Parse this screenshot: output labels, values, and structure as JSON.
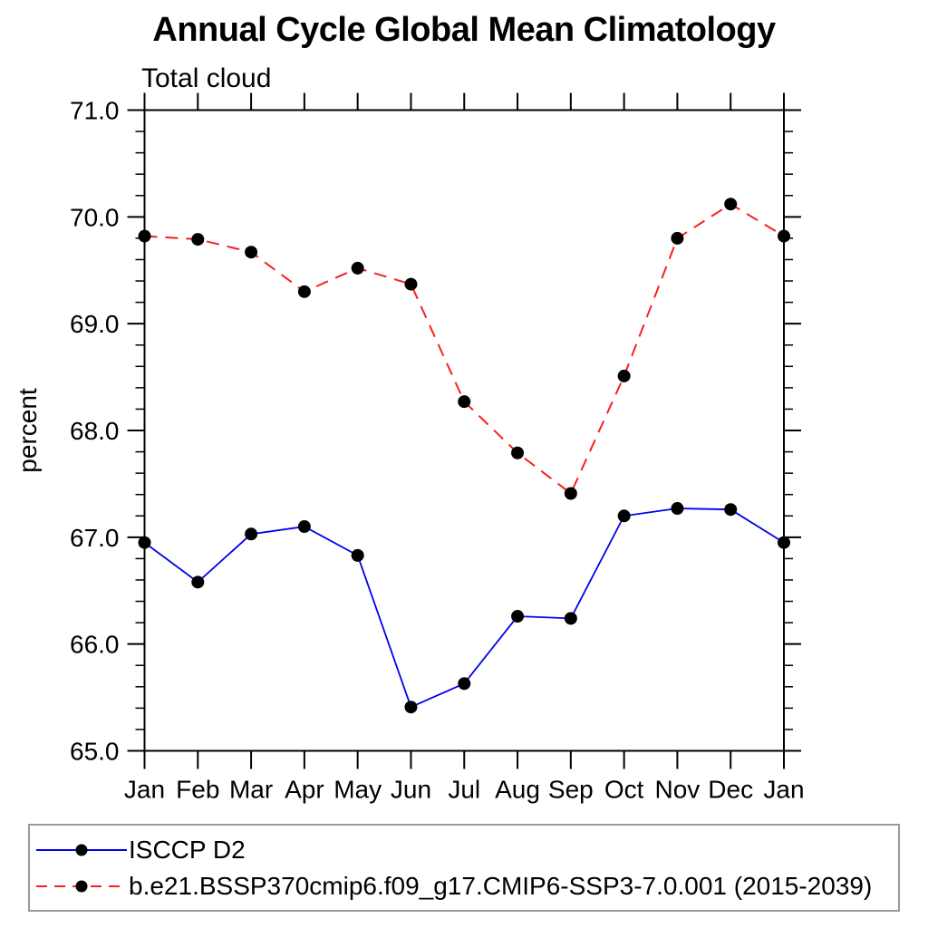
{
  "title": "Annual Cycle Global Mean Climatology",
  "subtitle": "Total cloud",
  "colors": {
    "axis": "#000000",
    "marker": "#000000",
    "series_blue": "#0000ee",
    "series_red": "#f91f1f",
    "legend_border": "#9a9a9a"
  },
  "chart_data": {
    "type": "line",
    "title": "Annual Cycle Global Mean Climatology",
    "subtitle": "Total cloud",
    "xlabel": "",
    "ylabel": "percent",
    "x_categories": [
      "Jan",
      "Feb",
      "Mar",
      "Apr",
      "May",
      "Jun",
      "Jul",
      "Aug",
      "Sep",
      "Oct",
      "Nov",
      "Dec",
      "Jan"
    ],
    "ylim": [
      65.0,
      71.0
    ],
    "ytick_major_step": 1.0,
    "ytick_minor_step": 0.2,
    "ytick_labels": [
      "65.0",
      "66.0",
      "67.0",
      "68.0",
      "69.0",
      "70.0",
      "71.0"
    ],
    "grid": false,
    "legend_position": "bottom-left-box",
    "series": [
      {
        "name": "ISCCP D2",
        "color": "#0000ee",
        "line_style": "solid",
        "marker": "black-dot",
        "values": [
          66.95,
          66.58,
          67.03,
          67.1,
          66.83,
          65.41,
          65.63,
          66.26,
          66.24,
          67.2,
          67.27,
          67.26,
          66.95
        ]
      },
      {
        "name": "b.e21.BSSP370cmip6.f09_g17.CMIP6-SSP3-7.0.001 (2015-2039)",
        "color": "#f91f1f",
        "line_style": "dashed",
        "marker": "black-dot",
        "values": [
          69.82,
          69.79,
          69.67,
          69.3,
          69.52,
          69.37,
          68.27,
          67.79,
          67.41,
          68.51,
          69.8,
          70.12,
          69.82
        ]
      }
    ]
  }
}
